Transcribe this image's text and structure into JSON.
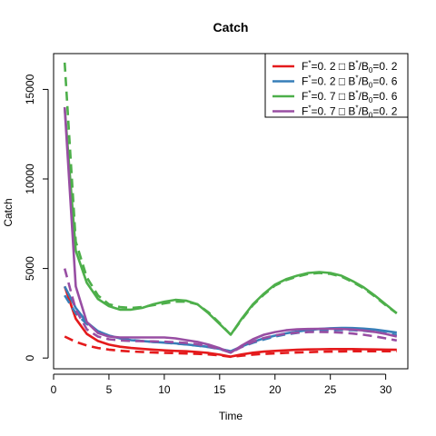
{
  "chart_data": {
    "type": "line",
    "title": "Catch",
    "xlabel": "Time",
    "ylabel": "Catch",
    "xlim": [
      0,
      32
    ],
    "ylim": [
      -600,
      17000
    ],
    "xticks": [
      "0",
      "5",
      "10",
      "15",
      "20",
      "25",
      "30"
    ],
    "yticks": [
      "0",
      "5000",
      "10000",
      "15000"
    ],
    "legend_position": "top-right",
    "x": [
      1,
      2,
      3,
      4,
      5,
      6,
      7,
      8,
      9,
      10,
      11,
      12,
      13,
      14,
      15,
      16,
      17,
      18,
      19,
      20,
      21,
      22,
      23,
      24,
      25,
      26,
      27,
      28,
      29,
      30,
      31
    ],
    "series": [
      {
        "name": "F*=0. 2 □ B*/B0=0. 2",
        "color": "#e41a1c",
        "style": "solid",
        "values": [
          4000,
          2200,
          1350,
          950,
          750,
          630,
          560,
          510,
          470,
          430,
          400,
          380,
          340,
          280,
          190,
          80,
          200,
          300,
          360,
          400,
          430,
          460,
          480,
          490,
          500,
          500,
          500,
          490,
          480,
          470,
          460
        ]
      },
      {
        "name": "F*=0. 2 □ B*/B0=0. 2",
        "color": "#e41a1c",
        "style": "dashed",
        "values": [
          1200,
          900,
          700,
          560,
          470,
          410,
          370,
          340,
          310,
          290,
          270,
          250,
          230,
          200,
          150,
          70,
          130,
          190,
          230,
          260,
          290,
          310,
          330,
          350,
          360,
          370,
          380,
          380,
          380,
          380,
          380
        ]
      },
      {
        "name": "F*=0. 2 □ B*/B0=0. 6",
        "color": "#377eb8",
        "style": "solid",
        "values": [
          4000,
          2800,
          2000,
          1500,
          1250,
          1100,
          1000,
          950,
          900,
          860,
          820,
          760,
          700,
          620,
          510,
          380,
          650,
          900,
          1100,
          1250,
          1380,
          1480,
          1560,
          1620,
          1660,
          1680,
          1670,
          1640,
          1590,
          1510,
          1420
        ]
      },
      {
        "name": "F*=0. 2 □ B*/B0=0. 6",
        "color": "#377eb8",
        "style": "dashed",
        "values": [
          3500,
          2500,
          1900,
          1500,
          1250,
          1100,
          1010,
          950,
          900,
          860,
          810,
          760,
          690,
          610,
          500,
          380,
          620,
          850,
          1040,
          1200,
          1320,
          1410,
          1480,
          1530,
          1560,
          1570,
          1560,
          1520,
          1460,
          1380,
          1280
        ]
      },
      {
        "name": "F*=0. 7 □ B*/B0=0. 6",
        "color": "#4daf4a",
        "style": "solid",
        "values": [
          14000,
          6000,
          4200,
          3300,
          2900,
          2700,
          2700,
          2800,
          3000,
          3150,
          3250,
          3200,
          3000,
          2500,
          1900,
          1300,
          2200,
          3000,
          3600,
          4100,
          4400,
          4600,
          4750,
          4800,
          4750,
          4600,
          4300,
          3950,
          3500,
          3000,
          2500
        ]
      },
      {
        "name": "F*=0. 7 □ B*/B0=0. 6",
        "color": "#4daf4a",
        "style": "dashed",
        "values": [
          16500,
          6500,
          4500,
          3500,
          3000,
          2850,
          2800,
          2850,
          2950,
          3050,
          3150,
          3150,
          3000,
          2550,
          1950,
          1300,
          2150,
          2950,
          3550,
          4050,
          4350,
          4550,
          4700,
          4750,
          4700,
          4550,
          4250,
          3900,
          3450,
          2950,
          2500
        ]
      },
      {
        "name": "F*=0. 7 □ B*/B0=0. 2",
        "color": "#984ea3",
        "style": "solid",
        "values": [
          14000,
          4000,
          2000,
          1400,
          1200,
          1150,
          1150,
          1150,
          1150,
          1150,
          1100,
          1000,
          900,
          750,
          550,
          300,
          700,
          1050,
          1300,
          1450,
          1550,
          1600,
          1620,
          1630,
          1630,
          1620,
          1590,
          1540,
          1460,
          1350,
          1200
        ]
      },
      {
        "name": "F*=0. 7 □ B*/B0=0. 2",
        "color": "#984ea3",
        "style": "dashed",
        "values": [
          5000,
          2700,
          1600,
          1200,
          1050,
          980,
          950,
          940,
          930,
          910,
          880,
          840,
          770,
          660,
          500,
          300,
          620,
          900,
          1120,
          1260,
          1360,
          1420,
          1450,
          1460,
          1450,
          1420,
          1370,
          1300,
          1210,
          1100,
          980
        ]
      }
    ]
  },
  "legend": [
    {
      "color": "#e41a1c",
      "label": "F*=0. 2 □ B*/B0=0. 2",
      "f": "F",
      "sup1": "*",
      "f_val": "=0. 2 □ B",
      "sup2": "*",
      "b0": "/B",
      "sub": "0",
      "tail": "=0. 2"
    },
    {
      "color": "#377eb8",
      "label": "F*=0. 2 □ B*/B0=0. 6",
      "f": "F",
      "sup1": "*",
      "f_val": "=0. 2 □ B",
      "sup2": "*",
      "b0": "/B",
      "sub": "0",
      "tail": "=0. 6"
    },
    {
      "color": "#4daf4a",
      "label": "F*=0. 7 □ B*/B0=0. 6",
      "f": "F",
      "sup1": "*",
      "f_val": "=0. 7 □ B",
      "sup2": "*",
      "b0": "/B",
      "sub": "0",
      "tail": "=0. 6"
    },
    {
      "color": "#984ea3",
      "label": "F*=0. 7 □ B*/B0=0. 2",
      "f": "F",
      "sup1": "*",
      "f_val": "=0. 7 □ B",
      "sup2": "*",
      "b0": "/B",
      "sub": "0",
      "tail": "=0. 2"
    }
  ]
}
